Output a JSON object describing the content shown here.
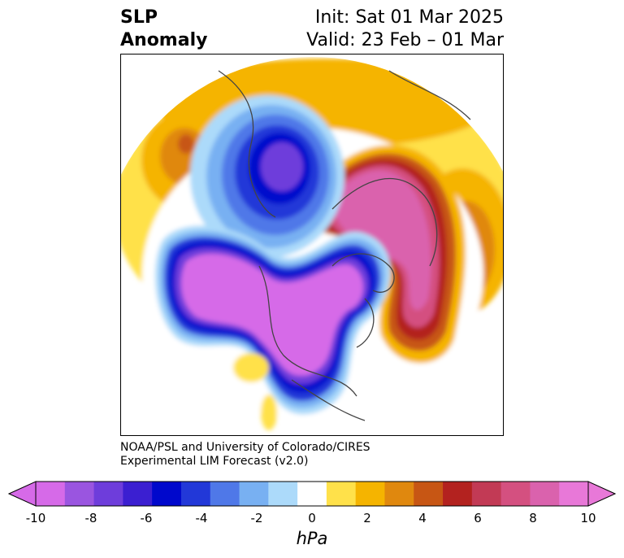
{
  "title": {
    "left_line1": "SLP",
    "left_line2": "Anomaly",
    "init": "Init: Sat 01 Mar 2025",
    "valid": "Valid: 23 Feb – 01 Mar"
  },
  "credit": {
    "line1": "NOAA/PSL and University of Colorado/CIRES",
    "line2": "Experimental LIM Forecast (v2.0)"
  },
  "colorbar": {
    "unit": "hPa",
    "ticks": [
      "-10",
      "-8",
      "-6",
      "-4",
      "-2",
      "0",
      "2",
      "4",
      "6",
      "8",
      "10"
    ],
    "colors": [
      "#d66ae8",
      "#9a55e0",
      "#6e3ddb",
      "#3b1fd1",
      "#0008cc",
      "#2238d8",
      "#4f78e8",
      "#78b0f2",
      "#acdafa",
      "#ffffff",
      "#ffe14a",
      "#f5b400",
      "#e0880e",
      "#c75614",
      "#b3221f",
      "#c23a55",
      "#d45080",
      "#da62ad",
      "#e878d8"
    ],
    "extend_min_color": "#d66ae8",
    "extend_max_color": "#e878d8"
  }
}
